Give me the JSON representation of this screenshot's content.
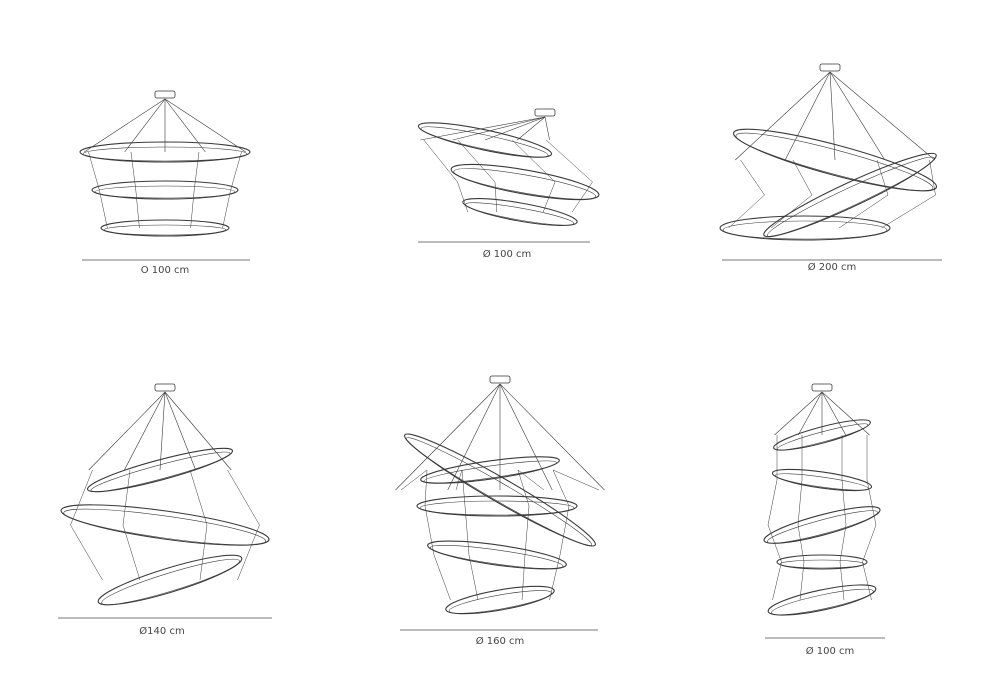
{
  "drawings": [
    {
      "label": "O 100 cm"
    },
    {
      "label": "Ø 100 cm"
    },
    {
      "label": "Ø 200 cm"
    },
    {
      "label": "Ø140 cm"
    },
    {
      "label": "Ø 160 cm"
    },
    {
      "label": "Ø 100 cm"
    }
  ],
  "colors": {
    "line": "#3a3a3a",
    "dimension": "#777777",
    "background": "#ffffff"
  }
}
